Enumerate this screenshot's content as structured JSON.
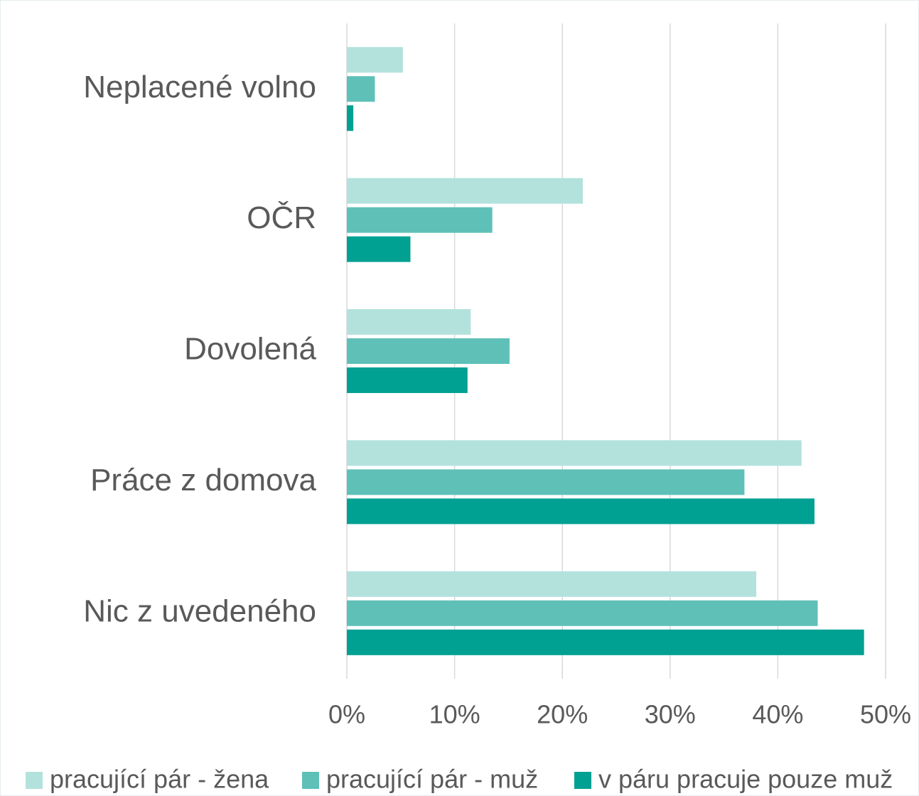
{
  "chart_data": {
    "type": "hbar",
    "categories": [
      "Neplacené volno",
      "OČR",
      "Dovolená",
      "Práce z domova",
      "Nic z uvedeného"
    ],
    "series": [
      {
        "name": "pracující pár - žena",
        "color": "#b3e2dd",
        "values": [
          5.2,
          21.9,
          11.5,
          42.2,
          38.0
        ]
      },
      {
        "name": "pracující pár - muž",
        "color": "#5fc0b8",
        "values": [
          2.6,
          13.5,
          15.1,
          36.9,
          43.7
        ]
      },
      {
        "name": "v páru pracuje pouze muž",
        "color": "#00a093",
        "values": [
          0.6,
          5.9,
          11.2,
          43.4,
          48.0
        ]
      }
    ],
    "xlim": [
      0,
      50
    ],
    "xticks": [
      {
        "value": 0,
        "label": "0%"
      },
      {
        "value": 10,
        "label": "10%"
      },
      {
        "value": 20,
        "label": "20%"
      },
      {
        "value": 30,
        "label": "30%"
      },
      {
        "value": 40,
        "label": "40%"
      },
      {
        "value": 50,
        "label": "50%"
      }
    ],
    "grid": true,
    "legend": "bottom"
  }
}
